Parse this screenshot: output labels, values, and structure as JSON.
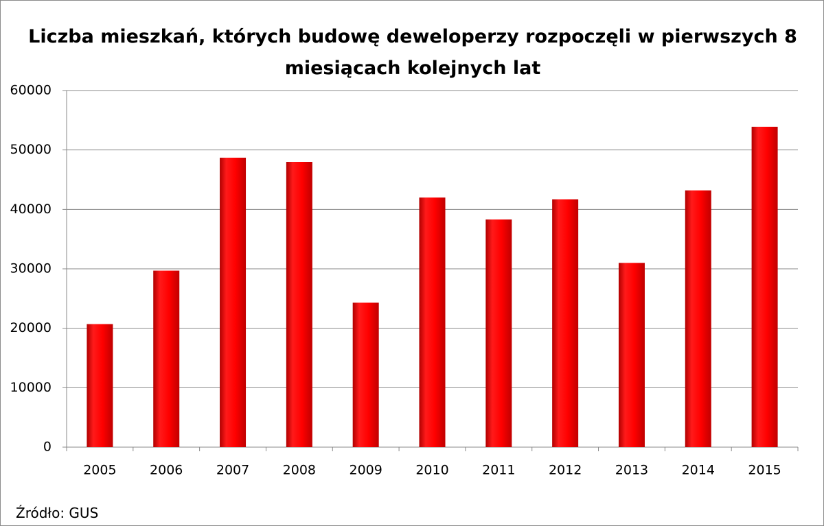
{
  "chart_data": {
    "type": "bar",
    "title": "Liczba mieszkań, których budowę deweloperzy rozpoczęli w pierwszych 8 miesiącach kolejnych lat",
    "categories": [
      "2005",
      "2006",
      "2007",
      "2008",
      "2009",
      "2010",
      "2011",
      "2012",
      "2013",
      "2014",
      "2015"
    ],
    "values": [
      20700,
      29700,
      48700,
      48000,
      24300,
      42000,
      38300,
      41700,
      31000,
      43200,
      53900
    ],
    "color": "#ff0000",
    "ylim": [
      0,
      60000
    ],
    "yticks": [
      0,
      10000,
      20000,
      30000,
      40000,
      50000,
      60000
    ],
    "grid": true,
    "source": "Źródło: GUS"
  }
}
